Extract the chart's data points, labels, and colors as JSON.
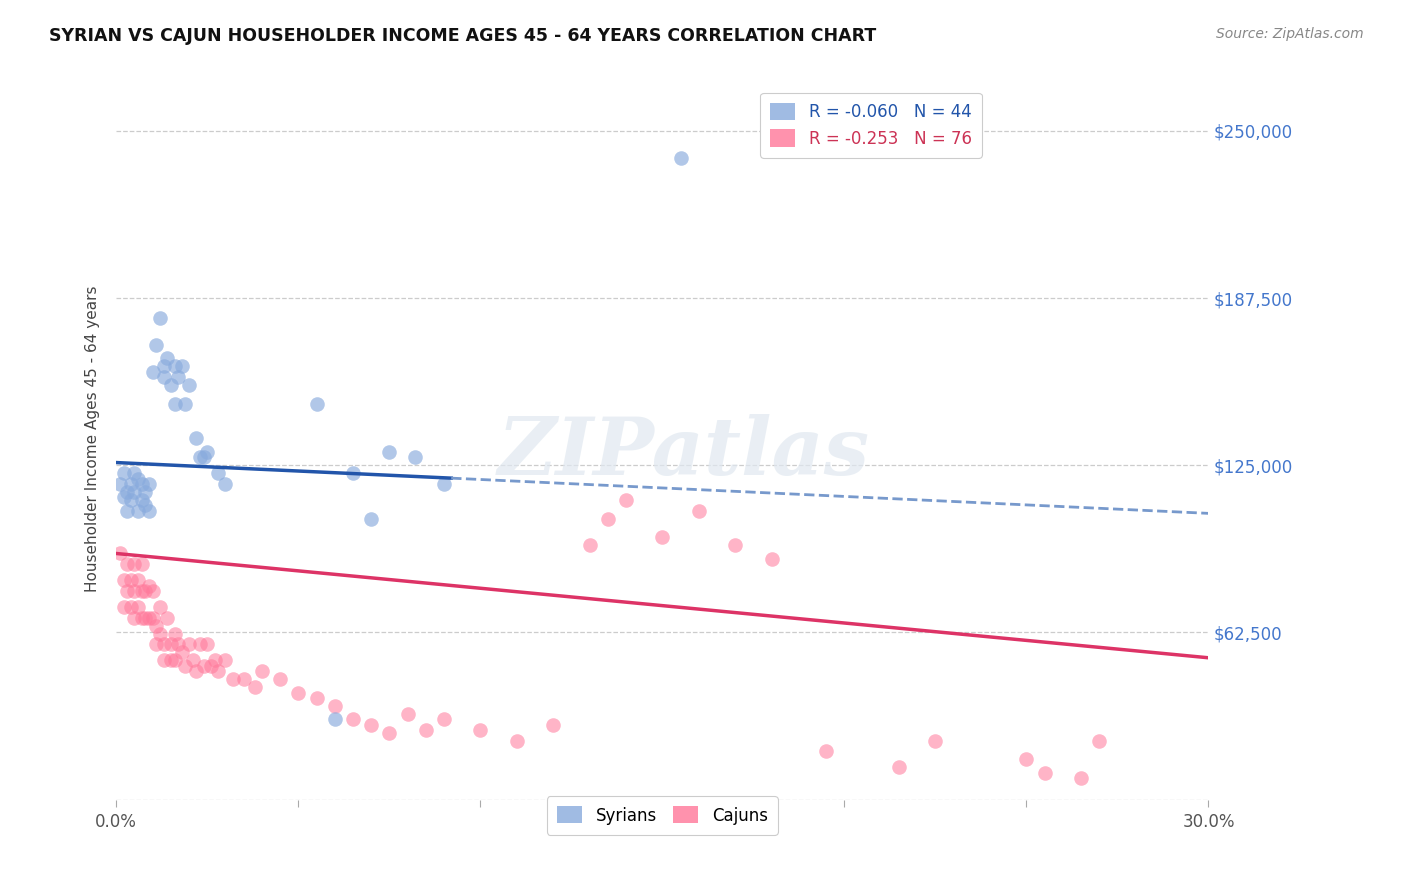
{
  "title": "SYRIAN VS CAJUN HOUSEHOLDER INCOME AGES 45 - 64 YEARS CORRELATION CHART",
  "source": "Source: ZipAtlas.com",
  "ylabel": "Householder Income Ages 45 - 64 years",
  "xlim": [
    0.0,
    0.3
  ],
  "ylim": [
    0,
    270000
  ],
  "xticks": [
    0.0,
    0.05,
    0.1,
    0.15,
    0.2,
    0.25,
    0.3
  ],
  "xticklabels": [
    "0.0%",
    "",
    "",
    "",
    "",
    "",
    "30.0%"
  ],
  "ytick_vals": [
    0,
    62500,
    125000,
    187500,
    250000
  ],
  "ytick_labels": [
    "",
    "$62,500",
    "$125,000",
    "$187,500",
    "$250,000"
  ],
  "blue_color": "#88aadd",
  "pink_color": "#ff7799",
  "trendline_blue_solid": "#2255aa",
  "trendline_blue_dashed": "#7799cc",
  "trendline_pink": "#dd3366",
  "legend_R_blue": "-0.060",
  "legend_N_blue": "44",
  "legend_R_pink": "-0.253",
  "legend_N_pink": "76",
  "watermark": "ZIPatlas",
  "background_color": "#ffffff",
  "syrians_x": [
    0.001,
    0.002,
    0.002,
    0.003,
    0.003,
    0.004,
    0.004,
    0.005,
    0.005,
    0.006,
    0.006,
    0.007,
    0.007,
    0.008,
    0.008,
    0.009,
    0.009,
    0.01,
    0.011,
    0.012,
    0.013,
    0.013,
    0.014,
    0.015,
    0.016,
    0.016,
    0.017,
    0.018,
    0.019,
    0.02,
    0.022,
    0.023,
    0.024,
    0.025,
    0.028,
    0.03,
    0.055,
    0.06,
    0.065,
    0.07,
    0.075,
    0.082,
    0.09,
    0.155
  ],
  "syrians_y": [
    118000,
    113000,
    122000,
    115000,
    108000,
    112000,
    118000,
    115000,
    122000,
    120000,
    108000,
    118000,
    112000,
    110000,
    115000,
    118000,
    108000,
    160000,
    170000,
    180000,
    162000,
    158000,
    165000,
    155000,
    148000,
    162000,
    158000,
    162000,
    148000,
    155000,
    135000,
    128000,
    128000,
    130000,
    122000,
    118000,
    148000,
    30000,
    122000,
    105000,
    130000,
    128000,
    118000,
    240000
  ],
  "cajuns_x": [
    0.001,
    0.002,
    0.002,
    0.003,
    0.003,
    0.004,
    0.004,
    0.005,
    0.005,
    0.005,
    0.006,
    0.006,
    0.007,
    0.007,
    0.007,
    0.008,
    0.008,
    0.009,
    0.009,
    0.01,
    0.01,
    0.011,
    0.011,
    0.012,
    0.012,
    0.013,
    0.013,
    0.014,
    0.015,
    0.015,
    0.016,
    0.016,
    0.017,
    0.018,
    0.019,
    0.02,
    0.021,
    0.022,
    0.023,
    0.024,
    0.025,
    0.026,
    0.027,
    0.028,
    0.03,
    0.032,
    0.035,
    0.038,
    0.04,
    0.045,
    0.05,
    0.055,
    0.06,
    0.065,
    0.07,
    0.075,
    0.08,
    0.085,
    0.09,
    0.1,
    0.11,
    0.12,
    0.13,
    0.135,
    0.14,
    0.15,
    0.16,
    0.17,
    0.18,
    0.195,
    0.215,
    0.225,
    0.25,
    0.255,
    0.265,
    0.27
  ],
  "cajuns_y": [
    92000,
    82000,
    72000,
    88000,
    78000,
    82000,
    72000,
    88000,
    78000,
    68000,
    82000,
    72000,
    88000,
    78000,
    68000,
    78000,
    68000,
    80000,
    68000,
    78000,
    68000,
    65000,
    58000,
    72000,
    62000,
    58000,
    52000,
    68000,
    58000,
    52000,
    62000,
    52000,
    58000,
    55000,
    50000,
    58000,
    52000,
    48000,
    58000,
    50000,
    58000,
    50000,
    52000,
    48000,
    52000,
    45000,
    45000,
    42000,
    48000,
    45000,
    40000,
    38000,
    35000,
    30000,
    28000,
    25000,
    32000,
    26000,
    30000,
    26000,
    22000,
    28000,
    95000,
    105000,
    112000,
    98000,
    108000,
    95000,
    90000,
    18000,
    12000,
    22000,
    15000,
    10000,
    8000,
    22000
  ],
  "blue_trendline_x0": 0.0,
  "blue_trendline_x_solid_end": 0.092,
  "blue_trendline_x1": 0.3,
  "blue_trendline_y0": 126000,
  "blue_trendline_y1": 107000,
  "pink_trendline_x0": 0.0,
  "pink_trendline_x1": 0.3,
  "pink_trendline_y0": 92000,
  "pink_trendline_y1": 53000
}
